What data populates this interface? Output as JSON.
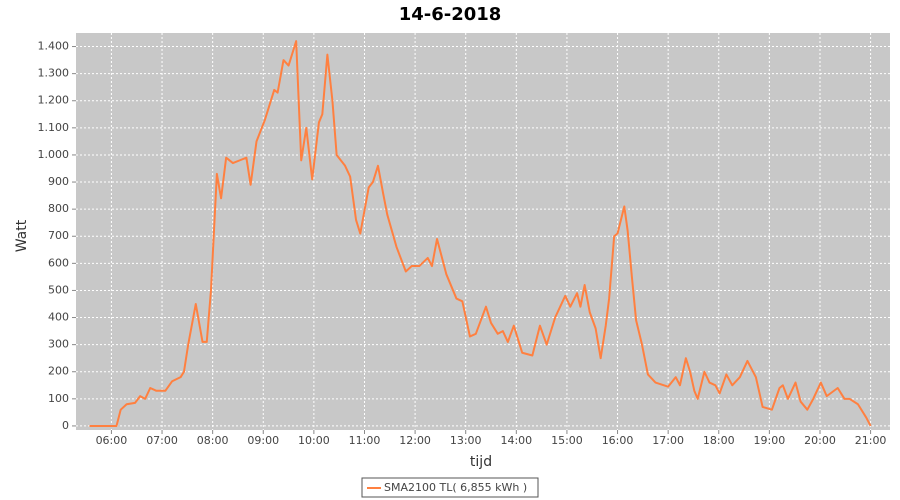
{
  "chart_data": {
    "type": "line",
    "title": "14-6-2018",
    "x_label": "tijd",
    "y_label": "Watt",
    "x": [
      "05:34",
      "06:06",
      "06:11",
      "06:18",
      "06:28",
      "06:34",
      "06:40",
      "06:46",
      "06:53",
      "07:04",
      "07:12",
      "07:22",
      "07:26",
      "07:31",
      "07:40",
      "07:48",
      "07:53",
      "07:58",
      "08:05",
      "08:10",
      "08:16",
      "08:24",
      "08:32",
      "08:40",
      "08:45",
      "08:52",
      "09:02",
      "09:13",
      "09:17",
      "09:24",
      "09:30",
      "09:39",
      "09:45",
      "09:51",
      "09:58",
      "10:06",
      "10:10",
      "10:16",
      "10:22",
      "10:27",
      "10:37",
      "10:43",
      "10:50",
      "10:55",
      "11:05",
      "11:10",
      "11:16",
      "11:22",
      "11:27",
      "11:38",
      "11:49",
      "11:56",
      "12:05",
      "12:15",
      "12:20",
      "12:26",
      "12:37",
      "12:49",
      "12:56",
      "13:05",
      "13:12",
      "13:24",
      "13:30",
      "13:38",
      "13:44",
      "13:50",
      "13:57",
      "14:07",
      "14:19",
      "14:28",
      "14:36",
      "14:46",
      "14:58",
      "15:04",
      "15:12",
      "15:16",
      "15:21",
      "15:27",
      "15:34",
      "15:40",
      "15:46",
      "15:50",
      "15:56",
      "16:00",
      "16:08",
      "16:12",
      "16:17",
      "16:22",
      "16:29",
      "16:36",
      "16:45",
      "17:00",
      "17:09",
      "17:14",
      "17:21",
      "17:26",
      "17:31",
      "17:35",
      "17:43",
      "17:49",
      "17:56",
      "18:01",
      "18:09",
      "18:16",
      "18:25",
      "18:34",
      "18:44",
      "18:52",
      "19:03",
      "19:12",
      "19:16",
      "19:22",
      "19:31",
      "19:37",
      "19:45",
      "19:52",
      "20:01",
      "20:08",
      "20:21",
      "20:29",
      "20:35",
      "20:45",
      "20:55",
      "21:00"
    ],
    "series": [
      {
        "name": "SMA2100 TL( 6,855 kWh )",
        "color": "#ff8040",
        "values": [
          0,
          0,
          60,
          80,
          85,
          110,
          100,
          140,
          130,
          130,
          165,
          180,
          200,
          300,
          450,
          310,
          310,
          500,
          930,
          840,
          990,
          970,
          980,
          990,
          890,
          1050,
          1130,
          1240,
          1230,
          1350,
          1330,
          1420,
          980,
          1100,
          910,
          1120,
          1150,
          1370,
          1200,
          1000,
          960,
          920,
          760,
          710,
          880,
          900,
          960,
          860,
          780,
          660,
          570,
          590,
          590,
          620,
          590,
          690,
          560,
          470,
          460,
          330,
          340,
          440,
          380,
          340,
          350,
          310,
          370,
          270,
          260,
          370,
          300,
          400,
          480,
          440,
          490,
          440,
          520,
          420,
          360,
          250,
          370,
          470,
          700,
          710,
          810,
          720,
          550,
          390,
          300,
          190,
          160,
          145,
          180,
          150,
          250,
          200,
          130,
          100,
          200,
          160,
          150,
          120,
          190,
          150,
          180,
          240,
          180,
          70,
          60,
          140,
          150,
          100,
          160,
          90,
          60,
          100,
          160,
          110,
          140,
          100,
          100,
          80,
          30,
          0
        ]
      }
    ],
    "xlim": [
      "05:18",
      "21:23"
    ],
    "xticks": [
      "06:00",
      "07:00",
      "08:00",
      "09:00",
      "10:00",
      "11:00",
      "12:00",
      "13:00",
      "14:00",
      "15:00",
      "16:00",
      "17:00",
      "18:00",
      "19:00",
      "20:00",
      "21:00"
    ],
    "ylim": [
      -15,
      1450
    ],
    "yticks": [
      0,
      100,
      200,
      300,
      400,
      500,
      600,
      700,
      800,
      900,
      {
        "value": 1000,
        "label": "1.000"
      },
      {
        "value": 1100,
        "label": "1.100"
      },
      {
        "value": 1200,
        "label": "1.200"
      },
      {
        "value": 1300,
        "label": "1.300"
      },
      {
        "value": 1400,
        "label": "1.400"
      }
    ],
    "grid": true
  }
}
